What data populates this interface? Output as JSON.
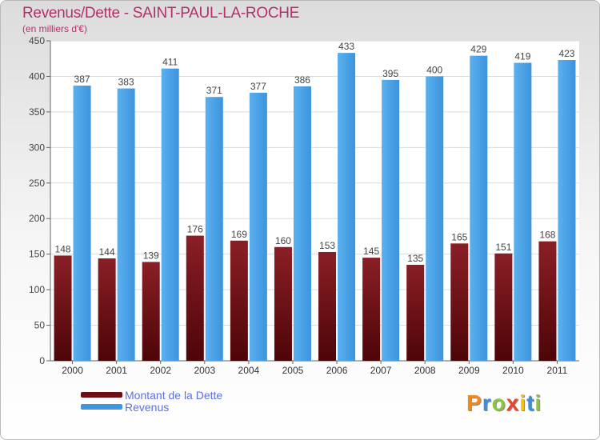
{
  "chart_data": {
    "type": "bar",
    "title": "Revenus/Dette - SAINT-PAUL-LA-ROCHE",
    "subtitle": "(en milliers d'€)",
    "categories": [
      "2000",
      "2001",
      "2002",
      "2003",
      "2004",
      "2005",
      "2006",
      "2007",
      "2008",
      "2009",
      "2010",
      "2011"
    ],
    "series": [
      {
        "name": "Montant de la Dette",
        "color": "#6b0f14",
        "values": [
          148,
          144,
          139,
          176,
          169,
          160,
          153,
          145,
          135,
          165,
          151,
          168
        ]
      },
      {
        "name": "Revenus",
        "color": "#3f96e0",
        "values": [
          387,
          383,
          411,
          371,
          377,
          386,
          433,
          395,
          400,
          429,
          419,
          423
        ]
      }
    ],
    "ylim": [
      0,
      450
    ],
    "yticks": [
      0,
      50,
      100,
      150,
      200,
      250,
      300,
      350,
      400,
      450
    ],
    "grid": true,
    "legend_position": "bottom-left"
  },
  "logo": {
    "letters": [
      "P",
      "r",
      "o",
      "x",
      "i",
      "t",
      "i"
    ],
    "colors": [
      "#f08a1c",
      "#3b8fd8",
      "#8cc63f",
      "#e8462a",
      "#f2c40f",
      "#3b8fd8",
      "#8cc63f"
    ]
  }
}
